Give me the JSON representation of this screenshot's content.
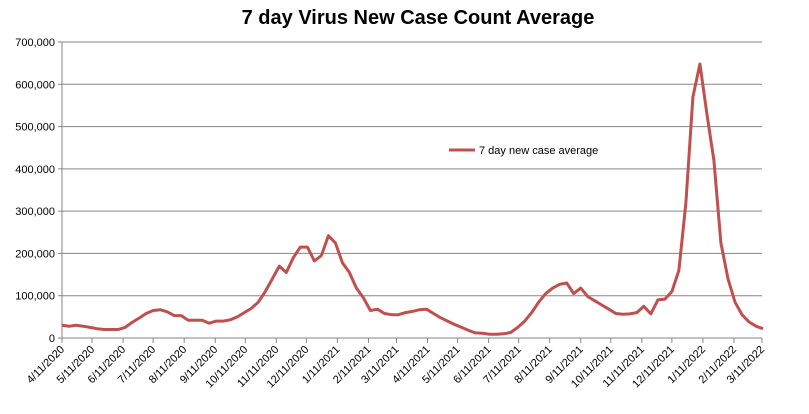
{
  "chart_data": {
    "type": "line",
    "title": "7 day Virus New Case Count Average",
    "xlabel": "",
    "ylabel": "",
    "ylim": [
      0,
      700000
    ],
    "y_ticks": [
      0,
      100000,
      200000,
      300000,
      400000,
      500000,
      600000,
      700000
    ],
    "y_tick_labels": [
      "0",
      "100,000",
      "200,000",
      "300,000",
      "400,000",
      "500,000",
      "600,000",
      "700,000"
    ],
    "x_range": [
      "2020-04-11",
      "2022-03-11"
    ],
    "x_tick_dates": [
      "2020-04-11",
      "2020-05-11",
      "2020-06-11",
      "2020-07-11",
      "2020-08-11",
      "2020-09-11",
      "2020-10-11",
      "2020-11-11",
      "2020-12-11",
      "2021-01-11",
      "2021-02-11",
      "2021-03-11",
      "2021-04-11",
      "2021-05-11",
      "2021-06-11",
      "2021-07-11",
      "2021-08-11",
      "2021-09-11",
      "2021-10-11",
      "2021-11-11",
      "2021-12-11",
      "2022-01-11",
      "2022-02-11",
      "2022-03-11"
    ],
    "x_tick_labels": [
      "4/11/2020",
      "5/11/2020",
      "6/11/2020",
      "7/11/2020",
      "8/11/2020",
      "9/11/2020",
      "10/11/2020",
      "11/11/2020",
      "12/11/2020",
      "1/11/2021",
      "2/11/2021",
      "3/11/2021",
      "4/11/2021",
      "5/11/2021",
      "6/11/2021",
      "7/11/2021",
      "8/11/2021",
      "9/11/2021",
      "10/11/2021",
      "11/11/2021",
      "12/11/2021",
      "1/11/2022",
      "2/11/2022",
      "3/11/2022"
    ],
    "grid": true,
    "legend_position": "center",
    "series": [
      {
        "name": "7 day new case average",
        "color": "#C0504D",
        "x_start": "2020-04-11",
        "x_frequency": "weekly",
        "values": [
          30000,
          28000,
          30000,
          28000,
          25000,
          22000,
          20000,
          20000,
          20000,
          25000,
          37000,
          47000,
          58000,
          65000,
          67000,
          62000,
          53000,
          53000,
          42000,
          42000,
          42000,
          35000,
          40000,
          40000,
          43000,
          50000,
          60000,
          70000,
          85000,
          110000,
          140000,
          170000,
          155000,
          190000,
          215000,
          215000,
          182000,
          195000,
          242000,
          225000,
          178000,
          155000,
          118000,
          95000,
          65000,
          68000,
          58000,
          55000,
          55000,
          60000,
          63000,
          67000,
          68000,
          58000,
          48000,
          40000,
          32000,
          25000,
          18000,
          12000,
          11000,
          9000,
          9000,
          10000,
          13000,
          25000,
          40000,
          60000,
          85000,
          105000,
          118000,
          127000,
          130000,
          105000,
          118000,
          98000,
          88000,
          78000,
          68000,
          58000,
          56000,
          57000,
          60000,
          75000,
          57000,
          90000,
          92000,
          110000,
          160000,
          320000,
          570000,
          648000,
          530000,
          420000,
          225000,
          140000,
          85000,
          55000,
          38000,
          28000,
          22000
        ]
      }
    ]
  }
}
